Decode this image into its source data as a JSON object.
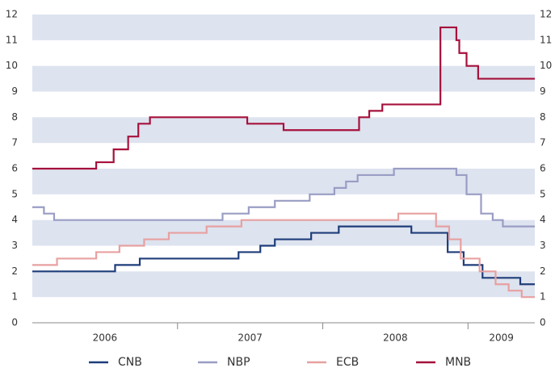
{
  "chart_data": {
    "type": "step",
    "xlim": [
      2006,
      2009.46
    ],
    "xticks": [
      {
        "value": 2006.5,
        "label": "2006"
      },
      {
        "value": 2007.5,
        "label": "2007"
      },
      {
        "value": 2008.5,
        "label": "2008"
      },
      {
        "value": 2009.23,
        "label": "2009"
      }
    ],
    "xdividers": [
      2007,
      2008,
      2009
    ],
    "ylim": [
      0,
      12
    ],
    "yticks": [
      0,
      1,
      2,
      3,
      4,
      5,
      6,
      7,
      8,
      9,
      10,
      11,
      12
    ],
    "banded_grid": true,
    "legend": "bottom",
    "series": [
      {
        "name": "CNB",
        "color": "#1f3d7a",
        "x": [
          2006,
          2006.57,
          2006.74,
          2007.42,
          2007.57,
          2007.67,
          2007.92,
          2008.11,
          2008.61,
          2008.86,
          2008.97,
          2009.1,
          2009.36
        ],
        "values": [
          2.0,
          2.25,
          2.5,
          2.75,
          3.0,
          3.25,
          3.5,
          3.75,
          3.5,
          2.75,
          2.25,
          1.75,
          1.5
        ]
      },
      {
        "name": "NBP",
        "color": "#9a9dc4",
        "x": [
          2006,
          2006.08,
          2006.15,
          2007.31,
          2007.49,
          2007.67,
          2007.91,
          2008.08,
          2008.16,
          2008.24,
          2008.49,
          2008.92,
          2008.99,
          2009.09,
          2009.17,
          2009.24
        ],
        "values": [
          4.5,
          4.25,
          4.0,
          4.25,
          4.5,
          4.75,
          5.0,
          5.25,
          5.5,
          5.75,
          6.0,
          5.75,
          5.0,
          4.25,
          4.0,
          3.75
        ]
      },
      {
        "name": "ECB",
        "color": "#e8a0a0",
        "x": [
          2006,
          2006.17,
          2006.44,
          2006.6,
          2006.77,
          2006.94,
          2007.2,
          2007.44,
          2008.52,
          2008.78,
          2008.87,
          2008.95,
          2009.08,
          2009.19,
          2009.28,
          2009.37
        ],
        "values": [
          2.25,
          2.5,
          2.75,
          3.0,
          3.25,
          3.5,
          3.75,
          4.0,
          4.25,
          3.75,
          3.25,
          2.5,
          2.0,
          1.5,
          1.25,
          1.0
        ]
      },
      {
        "name": "MNB",
        "color": "#a6113c",
        "x": [
          2006,
          2006.44,
          2006.56,
          2006.66,
          2006.73,
          2006.81,
          2007.48,
          2007.73,
          2008.25,
          2008.32,
          2008.41,
          2008.81,
          2008.92,
          2008.94,
          2008.99,
          2009.07
        ],
        "values": [
          6.0,
          6.25,
          6.75,
          7.25,
          7.75,
          8.0,
          7.75,
          7.5,
          8.0,
          8.25,
          8.5,
          11.5,
          11.0,
          10.5,
          10.0,
          9.5
        ]
      }
    ]
  }
}
